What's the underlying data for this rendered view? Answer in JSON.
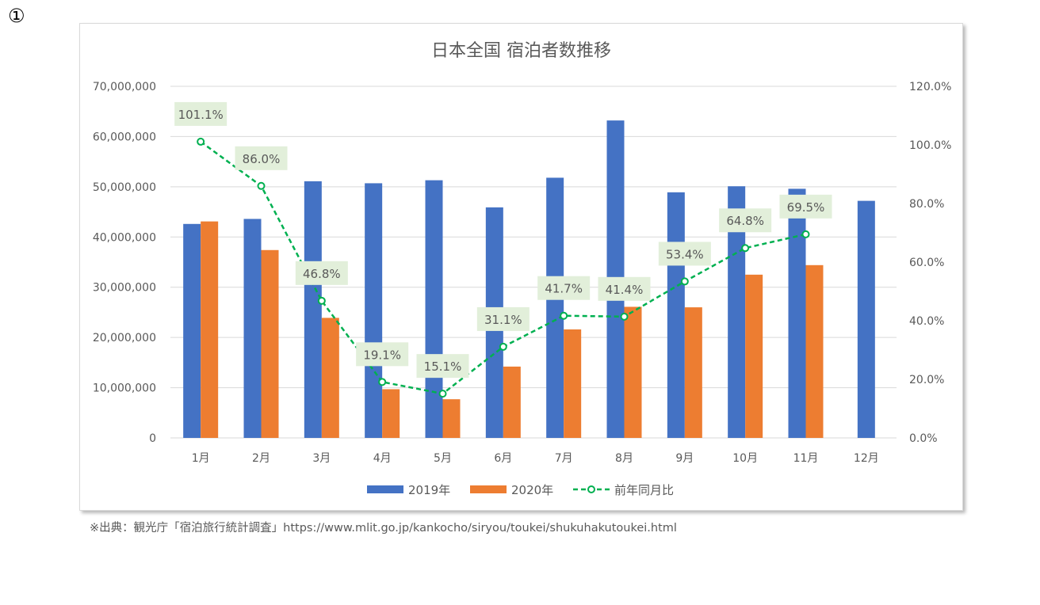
{
  "marker": "①",
  "source_note": "※出典：観光庁「宿泊旅行統計調査」https://www.mlit.go.jp/kankocho/siryou/toukei/shukuhakutoukei.html",
  "colors": {
    "series_2019": "#4472C4",
    "series_2020": "#ED7D31",
    "ratio": "#00B050",
    "label_bg": "#E2EFDA",
    "grid": "#d9d9d9",
    "text": "#595959"
  },
  "chart_data": {
    "type": "bar",
    "title": "日本全国 宿泊者数推移",
    "categories": [
      "1月",
      "2月",
      "3月",
      "4月",
      "5月",
      "6月",
      "7月",
      "8月",
      "9月",
      "10月",
      "11月",
      "12月"
    ],
    "series": [
      {
        "name": "2019年",
        "type": "bar",
        "axis": "left",
        "values": [
          42600000,
          43600000,
          51100000,
          50700000,
          51300000,
          45900000,
          51800000,
          63200000,
          48900000,
          50100000,
          49600000,
          47200000
        ]
      },
      {
        "name": "2020年",
        "type": "bar",
        "axis": "left",
        "values": [
          43100000,
          37400000,
          23900000,
          9700000,
          7700000,
          14200000,
          21600000,
          26100000,
          26000000,
          32500000,
          34400000,
          null
        ]
      },
      {
        "name": "前年同月比",
        "type": "line",
        "axis": "right",
        "style": "dashed with circle markers",
        "values": [
          101.1,
          86.0,
          46.8,
          19.1,
          15.1,
          31.1,
          41.7,
          41.4,
          53.4,
          64.8,
          69.5,
          null
        ],
        "labels": [
          "101.1%",
          "86.0%",
          "46.8%",
          "19.1%",
          "15.1%",
          "31.1%",
          "41.7%",
          "41.4%",
          "53.4%",
          "64.8%",
          "69.5%",
          ""
        ]
      }
    ],
    "y_left": {
      "min": 0,
      "max": 70000000,
      "ticks": [
        "0",
        "10,000,000",
        "20,000,000",
        "30,000,000",
        "40,000,000",
        "50,000,000",
        "60,000,000",
        "70,000,000"
      ]
    },
    "y_right": {
      "min": 0,
      "max": 120,
      "ticks": [
        "0.0%",
        "20.0%",
        "40.0%",
        "60.0%",
        "80.0%",
        "100.0%",
        "120.0%"
      ]
    },
    "grid": true,
    "legend_position": "bottom"
  }
}
